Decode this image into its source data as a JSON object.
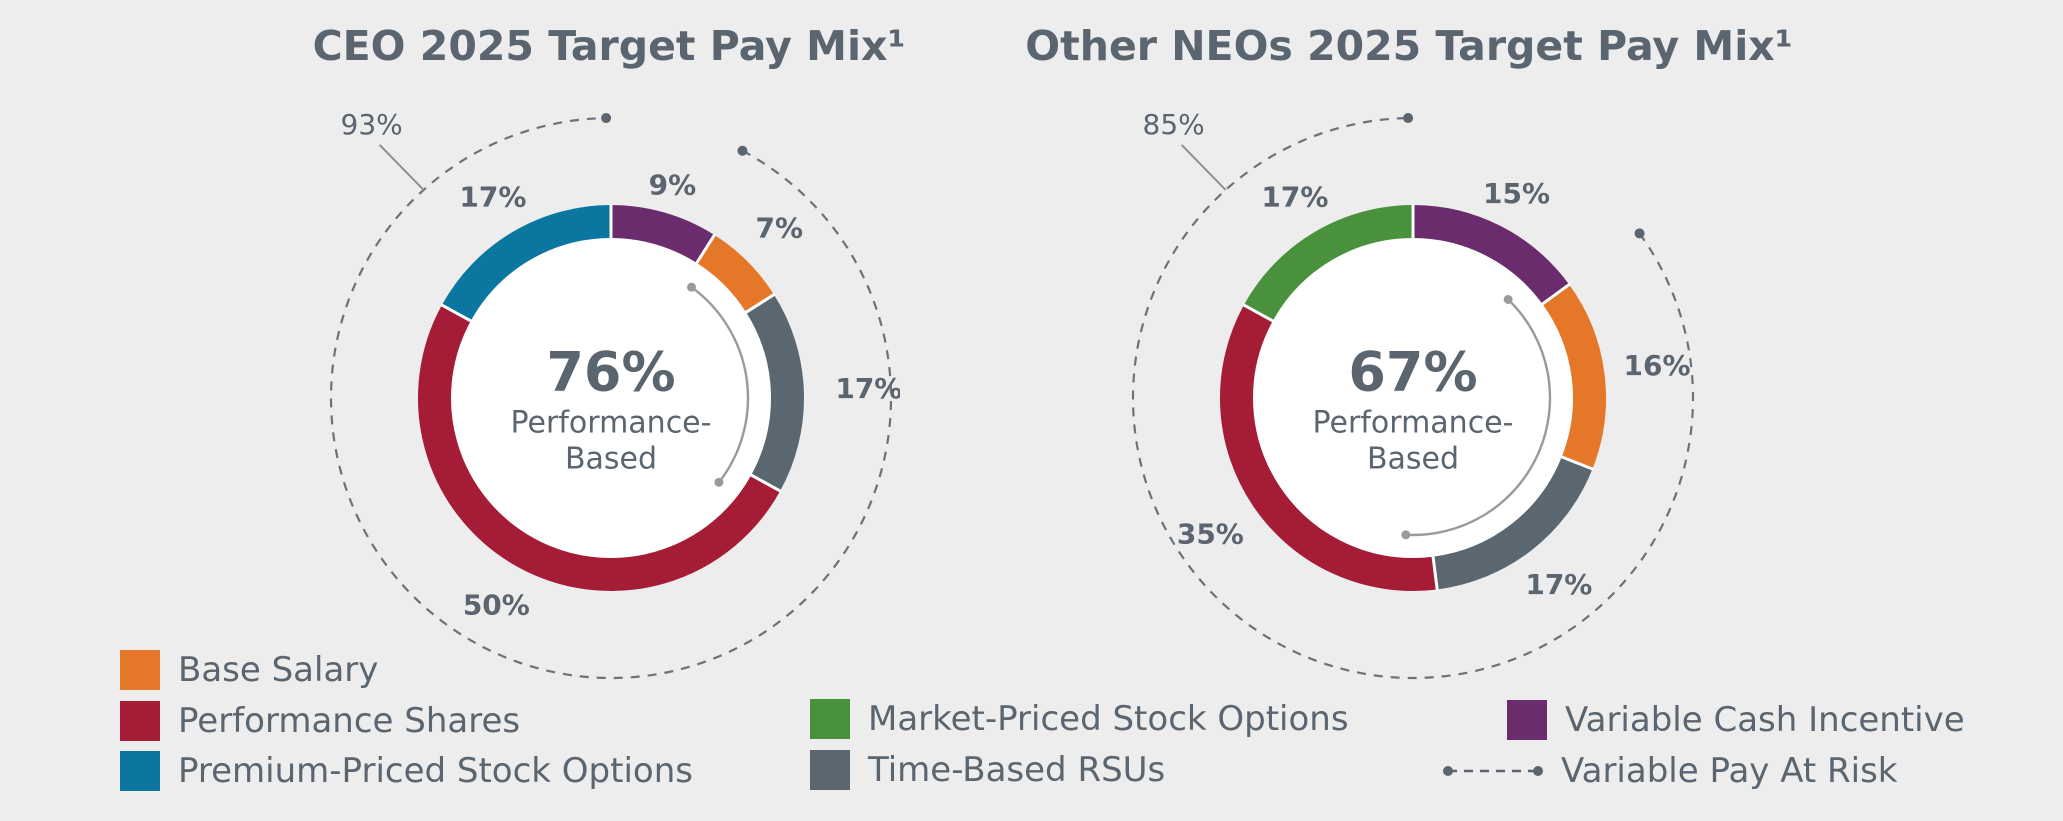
{
  "colors": {
    "base_salary": "#e57728",
    "performance_shares": "#a51c37",
    "premium_options": "#0b77a0",
    "market_options": "#4a913e",
    "time_rsus": "#5b6770",
    "variable_cash": "#6a2c6c",
    "text": "#5a6570",
    "guide": "#9a9a9a"
  },
  "chart_data": [
    {
      "type": "pie",
      "title": "CEO 2025 Target Pay Mix¹",
      "center_value": "76%",
      "center_label_line1": "Performance-",
      "center_label_line2": "Based",
      "at_risk_label": "93%",
      "slices": [
        {
          "name": "Variable Cash Incentive",
          "value": 9,
          "label": "9%"
        },
        {
          "name": "Base Salary",
          "value": 7,
          "label": "7%"
        },
        {
          "name": "Time-Based RSUs",
          "value": 17,
          "label": "17%"
        },
        {
          "name": "Performance Shares",
          "value": 50,
          "label": "50%"
        },
        {
          "name": "Premium-Priced Stock Options",
          "value": 17,
          "label": "17%"
        }
      ]
    },
    {
      "type": "pie",
      "title": "Other NEOs 2025 Target Pay Mix¹",
      "center_value": "67%",
      "center_label_line1": "Performance-",
      "center_label_line2": "Based",
      "at_risk_label": "85%",
      "slices": [
        {
          "name": "Variable Cash Incentive",
          "value": 15,
          "label": "15%"
        },
        {
          "name": "Base Salary",
          "value": 16,
          "label": "16%"
        },
        {
          "name": "Time-Based RSUs",
          "value": 17,
          "label": "17%"
        },
        {
          "name": "Performance Shares",
          "value": 35,
          "label": "35%"
        },
        {
          "name": "Market-Priced Stock Options",
          "value": 17,
          "label": "17%"
        }
      ]
    }
  ],
  "legend": {
    "base_salary": "Base Salary",
    "performance_shares": "Performance Shares",
    "premium_options": "Premium-Priced Stock Options",
    "market_options": "Market-Priced Stock Options",
    "time_rsus": "Time-Based RSUs",
    "variable_cash": "Variable Cash Incentive",
    "variable_risk": "Variable Pay At Risk"
  }
}
